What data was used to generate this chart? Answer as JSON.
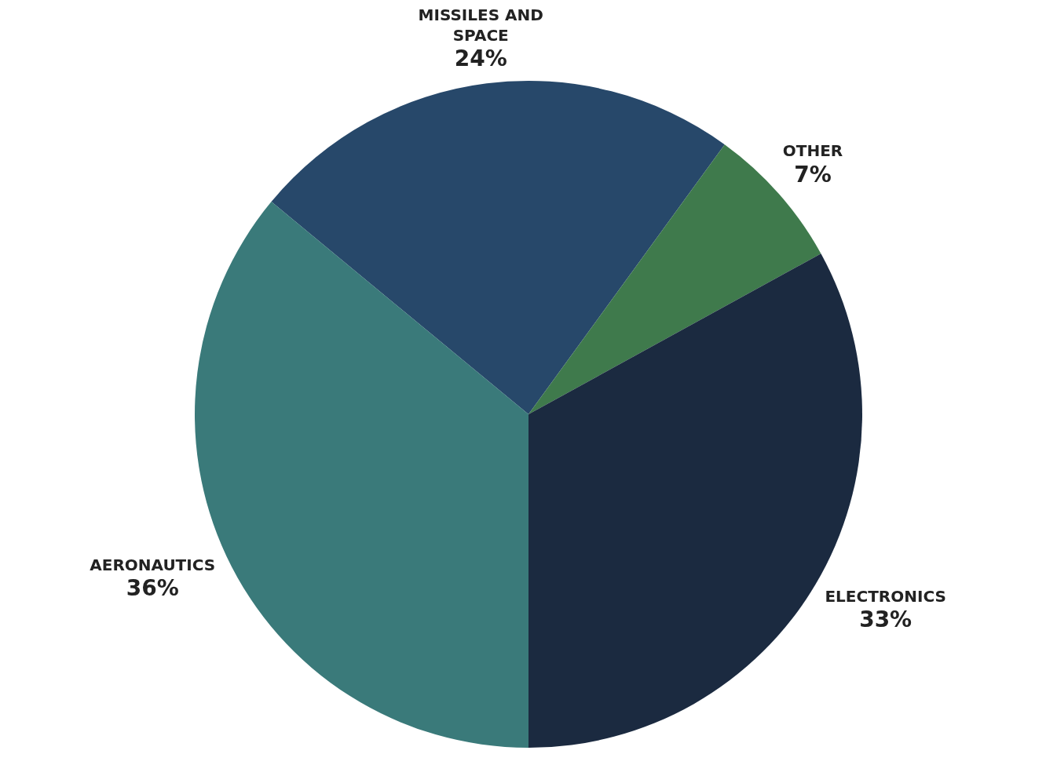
{
  "chart_data": {
    "type": "pie",
    "categories": [
      "MISSILES AND SPACE",
      "OTHER",
      "ELECTRONICS",
      "AERONAUTICS"
    ],
    "values": [
      24,
      7,
      33,
      36
    ],
    "colors": [
      "#27486a",
      "#3f7a4c",
      "#1b2a40",
      "#3a7a7a"
    ],
    "value_labels": [
      "24%",
      "7%",
      "33%",
      "36%"
    ],
    "legend": false
  }
}
